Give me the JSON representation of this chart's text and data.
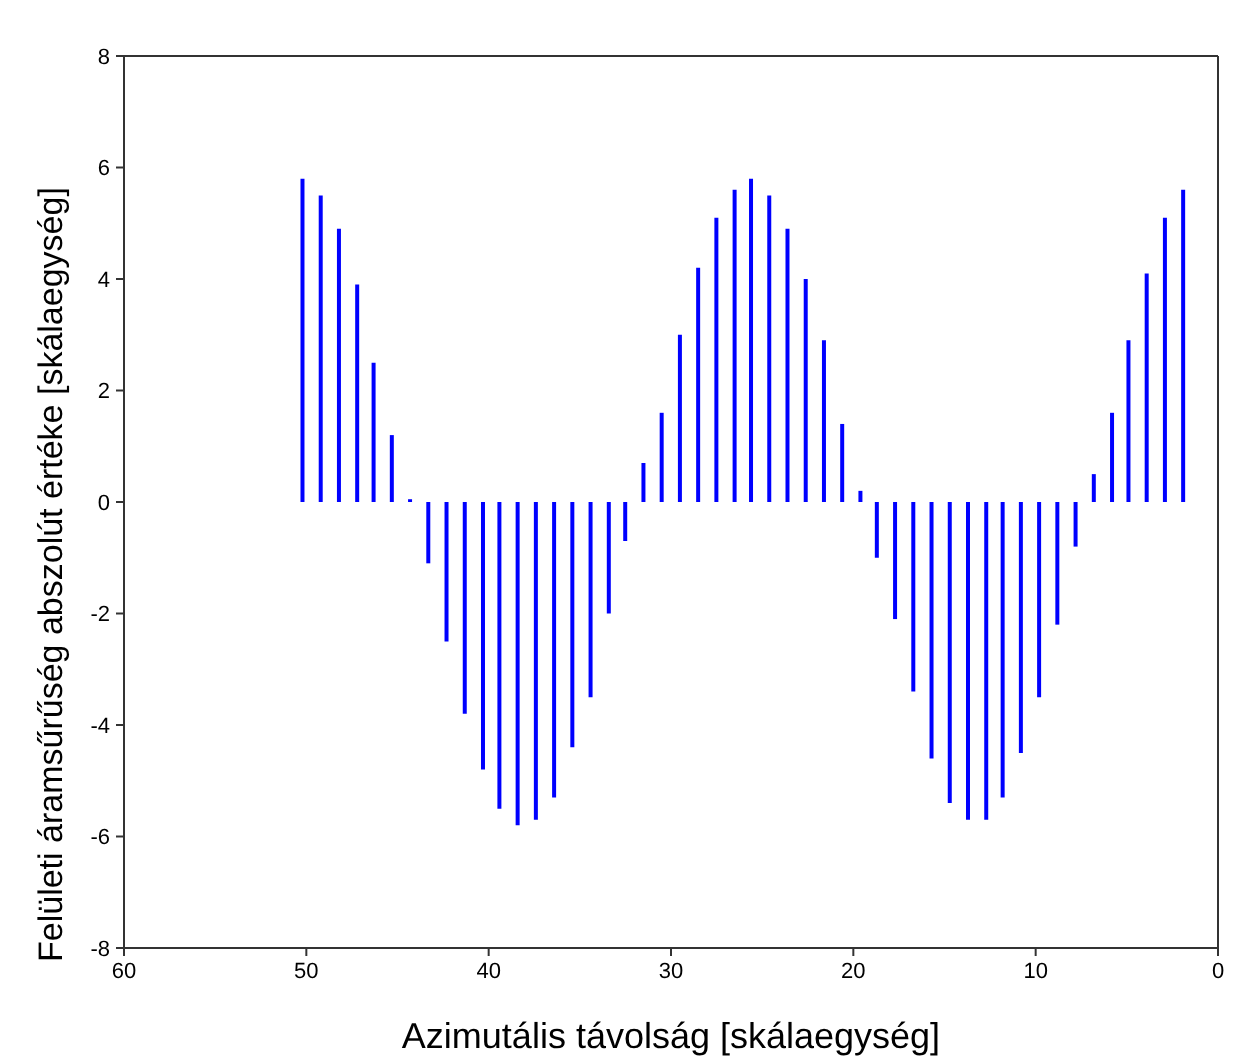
{
  "chart_data": {
    "type": "bar",
    "xlabel": "Azimutális távolság [skálaegység]",
    "ylabel": "Felületi áramsűrűség abszolút értéke [skálaegység]",
    "x": [
      50.2,
      49.2,
      48.2,
      47.2,
      46.3,
      45.3,
      44.3,
      43.3,
      42.3,
      41.3,
      40.3,
      39.4,
      38.4,
      37.4,
      36.4,
      35.4,
      34.4,
      33.4,
      32.5,
      31.5,
      30.5,
      29.5,
      28.5,
      27.5,
      26.5,
      25.6,
      24.6,
      23.6,
      22.6,
      21.6,
      20.6,
      19.6,
      18.7,
      17.7,
      16.7,
      15.7,
      14.7,
      13.7,
      12.7,
      11.8,
      10.8,
      9.8,
      8.8,
      7.8,
      6.8,
      5.8,
      4.9,
      3.9,
      2.9,
      1.9
    ],
    "values": [
      5.8,
      5.5,
      4.9,
      3.9,
      2.5,
      1.2,
      0.05,
      -1.1,
      -2.5,
      -3.8,
      -4.8,
      -5.5,
      -5.8,
      -5.7,
      -5.3,
      -4.4,
      -3.5,
      -2,
      -0.7,
      0.7,
      1.6,
      3,
      4.2,
      5.1,
      5.6,
      5.8,
      5.5,
      4.9,
      4,
      2.9,
      1.4,
      0.2,
      -1,
      -2.1,
      -3.4,
      -4.6,
      -5.4,
      -5.7,
      -5.7,
      -5.3,
      -4.5,
      -3.5,
      -2.2,
      -0.8,
      0.5,
      1.6,
      2.9,
      4.1,
      5.1,
      5.6
    ],
    "color": "#0000ff",
    "xlim": [
      60,
      0
    ],
    "xticks": [
      60,
      50,
      40,
      30,
      20,
      10,
      0
    ],
    "ylim": [
      -8,
      8
    ],
    "yticks": [
      -8,
      -6,
      -4,
      -2,
      0,
      2,
      4,
      6,
      8
    ]
  }
}
